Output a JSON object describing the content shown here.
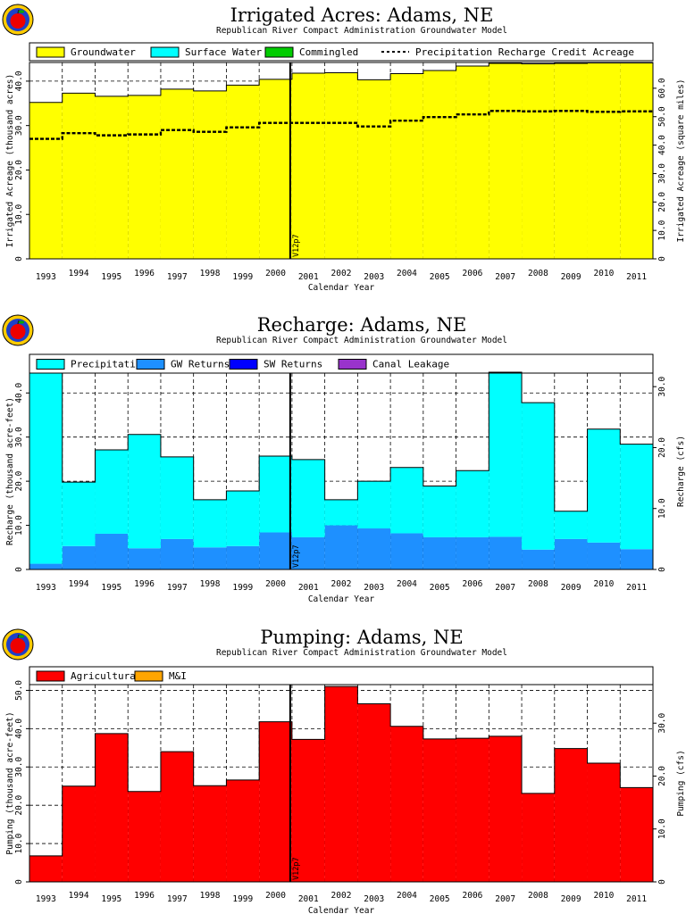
{
  "chart_data": [
    {
      "type": "area",
      "title": "Irrigated Acres: Adams, NE",
      "subtitle": "Republican River Compact Administration Groundwater Model",
      "xlabel": "Calendar Year",
      "ylabel": "Irrigated Acreage (thousand acres)",
      "ylabel_right": "Irrigated Acreage (square miles)",
      "categories": [
        "1993",
        "1994",
        "1995",
        "1996",
        "1997",
        "1998",
        "1999",
        "2000",
        "2001",
        "2002",
        "2003",
        "2004",
        "2005",
        "2006",
        "2007",
        "2008",
        "2009",
        "2010",
        "2011"
      ],
      "ylim": [
        0,
        44.2
      ],
      "yticks": [
        "0",
        "10.0",
        "20.0",
        "30.0",
        "40.0"
      ],
      "yticks_right": [
        "0",
        "10.0",
        "20.0",
        "30.0",
        "40.0",
        "50.0",
        "60.0"
      ],
      "right_factor": 0.64,
      "legend": [
        "Groundwater",
        "Surface Water",
        "Commingled",
        "Precipitation Recharge Credit Acreage"
      ],
      "series": [
        {
          "name": "Groundwater",
          "color": "#ffff00",
          "values": [
            35.2,
            37.3,
            36.6,
            36.8,
            38.2,
            37.8,
            39.1,
            40.4,
            41.8,
            41.9,
            40.3,
            41.7,
            42.4,
            43.4,
            44.0,
            43.9,
            44.0,
            44.1,
            44.1
          ]
        },
        {
          "name": "Surface Water",
          "color": "#00ffff",
          "values": [
            0,
            0,
            0,
            0,
            0,
            0,
            0,
            0,
            0,
            0,
            0,
            0,
            0,
            0,
            0,
            0,
            0,
            0,
            0
          ]
        },
        {
          "name": "Commingled",
          "color": "#00cc00",
          "values": [
            0,
            0,
            0,
            0,
            0,
            0,
            0,
            0,
            0,
            0,
            0,
            0,
            0,
            0,
            0,
            0,
            0,
            0,
            0
          ]
        }
      ],
      "dashed_series": {
        "name": "Precipitation Recharge Credit Acreage",
        "values": [
          27.0,
          28.3,
          27.8,
          28.0,
          29.0,
          28.6,
          29.6,
          30.6,
          30.6,
          30.6,
          29.8,
          31.1,
          31.9,
          32.5,
          33.3,
          33.2,
          33.3,
          33.1,
          33.2
        ]
      },
      "marker": {
        "label": "V12p7",
        "position": "2000/2001 boundary"
      }
    },
    {
      "type": "bar",
      "title": "Recharge: Adams, NE",
      "subtitle": "Republican River Compact Administration Groundwater Model",
      "xlabel": "Calendar Year",
      "ylabel": "Recharge (thousand acre-feet)",
      "ylabel_right": "Recharge (cfs)",
      "categories": [
        "1993",
        "1994",
        "1995",
        "1996",
        "1997",
        "1998",
        "1999",
        "2000",
        "2001",
        "2002",
        "2003",
        "2004",
        "2005",
        "2006",
        "2007",
        "2008",
        "2009",
        "2010",
        "2011"
      ],
      "ylim": [
        0,
        44.5
      ],
      "yticks": [
        "0",
        "10.0",
        "20.0",
        "30.0",
        "40.0"
      ],
      "yticks_right": [
        "0",
        "10.0",
        "20.0",
        "30.0",
        "40.0",
        "50.0",
        "60.0"
      ],
      "right_factor": 1.381,
      "legend": [
        "Precipitation",
        "GW Returns",
        "SW Returns",
        "Canal Leakage"
      ],
      "series": [
        {
          "name": "GW Returns",
          "color": "#1e90ff",
          "values": [
            1.3,
            5.3,
            8.1,
            4.8,
            6.9,
            5.0,
            5.3,
            8.4,
            7.3,
            10.0,
            9.3,
            8.2,
            7.3,
            7.3,
            7.4,
            4.5,
            6.9,
            6.1,
            4.6
          ]
        },
        {
          "name": "Precipitation",
          "color": "#00ffff",
          "values": [
            43.2,
            14.5,
            19.0,
            25.8,
            18.6,
            10.8,
            12.5,
            17.3,
            17.6,
            5.8,
            10.7,
            14.9,
            11.6,
            15.1,
            37.3,
            33.3,
            6.3,
            25.7,
            23.8
          ]
        },
        {
          "name": "SW Returns",
          "color": "#0000ff",
          "values": [
            0,
            0,
            0,
            0,
            0,
            0,
            0,
            0,
            0,
            0,
            0,
            0,
            0,
            0,
            0,
            0,
            0,
            0,
            0
          ]
        },
        {
          "name": "Canal Leakage",
          "color": "#9933cc",
          "values": [
            0,
            0,
            0,
            0,
            0,
            0,
            0,
            0,
            0,
            0,
            0,
            0,
            0,
            0,
            0,
            0,
            0,
            0,
            0
          ]
        }
      ],
      "marker": {
        "label": "V12p7",
        "position": "2000/2001 boundary"
      }
    },
    {
      "type": "bar",
      "title": "Pumping: Adams, NE",
      "subtitle": "Republican River Compact Administration Groundwater Model",
      "xlabel": "Calendar Year",
      "ylabel": "Pumping (thousand acre-feet)",
      "ylabel_right": "Pumping (cfs)",
      "categories": [
        "1993",
        "1994",
        "1995",
        "1996",
        "1997",
        "1998",
        "1999",
        "2000",
        "2001",
        "2002",
        "2003",
        "2004",
        "2005",
        "2006",
        "2007",
        "2008",
        "2009",
        "2010",
        "2011"
      ],
      "ylim": [
        0,
        51.5
      ],
      "yticks": [
        "0",
        "10.0",
        "20.0",
        "30.0",
        "40.0",
        "50.0"
      ],
      "yticks_right": [
        "0",
        "10.0",
        "20.0",
        "30.0",
        "40.0",
        "50.0",
        "60.0",
        "70.0"
      ],
      "right_factor": 1.381,
      "legend": [
        "Agricultural",
        "M&I"
      ],
      "series": [
        {
          "name": "Agricultural",
          "color": "#ff0000",
          "values": [
            6.8,
            25.0,
            38.7,
            23.6,
            34.0,
            25.1,
            26.6,
            41.8,
            37.2,
            51.0,
            46.5,
            40.6,
            37.3,
            37.5,
            38.0,
            23.1,
            34.8,
            31.0,
            24.6
          ]
        },
        {
          "name": "M&I",
          "color": "#ffa500",
          "values": [
            0,
            0,
            0,
            0,
            0,
            0,
            0,
            0,
            0,
            0,
            0,
            0,
            0,
            0,
            0,
            0,
            0,
            0,
            0
          ]
        }
      ],
      "marker": {
        "label": "V12p7",
        "position": "2000/2001 boundary"
      }
    }
  ]
}
